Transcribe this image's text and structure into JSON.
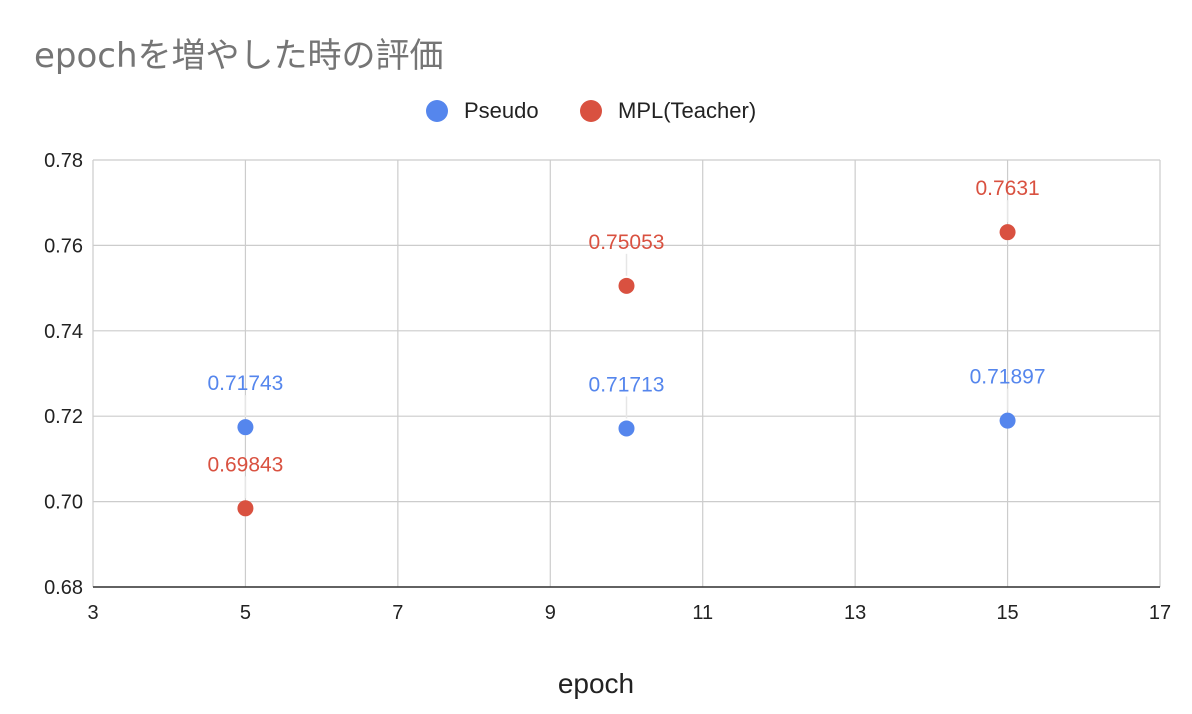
{
  "chart_data": {
    "type": "scatter",
    "title": "epochを増やした時の評価",
    "xlabel": "epoch",
    "ylabel": "",
    "xlim": [
      3,
      17
    ],
    "ylim": [
      0.68,
      0.78
    ],
    "xticks": [
      3,
      5,
      7,
      9,
      11,
      13,
      15,
      17
    ],
    "xtick_labels": [
      "3",
      "5",
      "7",
      "9",
      "11",
      "13",
      "15",
      "17"
    ],
    "yticks": [
      0.68,
      0.7,
      0.72,
      0.74,
      0.76,
      0.78
    ],
    "ytick_labels": [
      "0.68",
      "0.70",
      "0.72",
      "0.74",
      "0.76",
      "0.78"
    ],
    "grid": true,
    "legend_position": "top-center",
    "series": [
      {
        "name": "Pseudo",
        "color": "#5586ED",
        "x": [
          5,
          10,
          15
        ],
        "y": [
          0.71743,
          0.71713,
          0.71897
        ],
        "labels": [
          "0.71743",
          "0.71713",
          "0.71897"
        ]
      },
      {
        "name": "MPL(Teacher)",
        "color": "#D95140",
        "x": [
          5,
          10,
          15
        ],
        "y": [
          0.69843,
          0.75053,
          0.7631
        ],
        "labels": [
          "0.69843",
          "0.75053",
          "0.7631"
        ]
      }
    ]
  }
}
